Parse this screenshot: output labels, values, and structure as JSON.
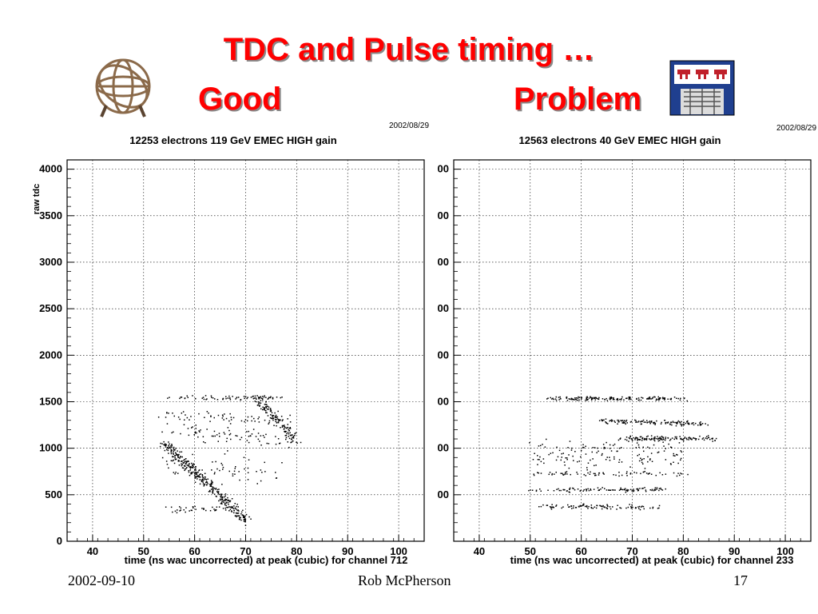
{
  "slide": {
    "title_line1": "TDC and Pulse timing …",
    "title_good": "Good",
    "title_problem": "Problem",
    "footer_date": "2002-09-10",
    "footer_author": "Rob McPherson",
    "footer_page": "17"
  },
  "icons": {
    "left_logo": "atlas-globe-icon",
    "right_logo": "university-crest-icon"
  },
  "colors": {
    "title": "#ff0000",
    "points": "#000000",
    "grid": "#000000"
  },
  "chart_data": [
    {
      "type": "scatter",
      "date": "2002/08/29",
      "title": "12253 electrons 119 GeV EMEC HIGH gain",
      "xlabel": "time (ns wac uncorrected) at peak (cubic) for channel 712",
      "ylabel": "raw tdc",
      "xlim": [
        35,
        105
      ],
      "ylim": [
        0,
        4100
      ],
      "xticks": [
        "40",
        "50",
        "60",
        "70",
        "80",
        "90",
        "100"
      ],
      "yticks": [
        "0",
        "500",
        "1000",
        "1500",
        "2000",
        "2500",
        "3000",
        "3500",
        "4000"
      ],
      "grid": true,
      "clusters": [
        {
          "x0": 54,
          "y0": 1060,
          "x1": 70,
          "y1": 230,
          "n": 330,
          "spread": 45
        },
        {
          "x0": 72,
          "y0": 1550,
          "x1": 80,
          "y1": 1080,
          "n": 130,
          "spread": 35
        },
        {
          "x0": 55,
          "y0": 1550,
          "x1": 77,
          "y1": 1550,
          "n": 70,
          "spread": 20
        },
        {
          "x0": 53,
          "y0": 1380,
          "x1": 79,
          "y1": 1300,
          "n": 60,
          "spread": 60
        },
        {
          "x0": 54,
          "y0": 1200,
          "x1": 80,
          "y1": 1100,
          "n": 80,
          "spread": 90
        },
        {
          "x0": 54,
          "y0": 800,
          "x1": 78,
          "y1": 750,
          "n": 70,
          "spread": 160
        },
        {
          "x0": 54,
          "y0": 350,
          "x1": 70,
          "y1": 350,
          "n": 40,
          "spread": 30
        }
      ]
    },
    {
      "type": "scatter",
      "date": "2002/08/29",
      "title": "12563 electrons 40 GeV EMEC HIGH gain",
      "xlabel": "time (ns wac uncorrected) at peak (cubic) for channel 233",
      "ylabel": "",
      "xlim": [
        35,
        105
      ],
      "ylim": [
        0,
        4100
      ],
      "xticks": [
        "40",
        "50",
        "60",
        "70",
        "80",
        "90",
        "100"
      ],
      "yticks": [
        "",
        "00",
        "00",
        "00",
        "00",
        "00",
        "00",
        "00",
        "00"
      ],
      "grid": true,
      "clusters": [
        {
          "x0": 54,
          "y0": 1540,
          "x1": 80,
          "y1": 1540,
          "n": 160,
          "spread": 20
        },
        {
          "x0": 64,
          "y0": 1300,
          "x1": 84,
          "y1": 1270,
          "n": 130,
          "spread": 25
        },
        {
          "x0": 68,
          "y0": 1110,
          "x1": 86,
          "y1": 1110,
          "n": 130,
          "spread": 25
        },
        {
          "x0": 50,
          "y0": 900,
          "x1": 80,
          "y1": 900,
          "n": 80,
          "spread": 120
        },
        {
          "x0": 50,
          "y0": 730,
          "x1": 80,
          "y1": 730,
          "n": 70,
          "spread": 25
        },
        {
          "x0": 50,
          "y0": 560,
          "x1": 76,
          "y1": 560,
          "n": 100,
          "spread": 25
        },
        {
          "x0": 52,
          "y0": 380,
          "x1": 75,
          "y1": 370,
          "n": 100,
          "spread": 25
        },
        {
          "x0": 50,
          "y0": 1000,
          "x1": 80,
          "y1": 1000,
          "n": 60,
          "spread": 100
        }
      ]
    }
  ]
}
